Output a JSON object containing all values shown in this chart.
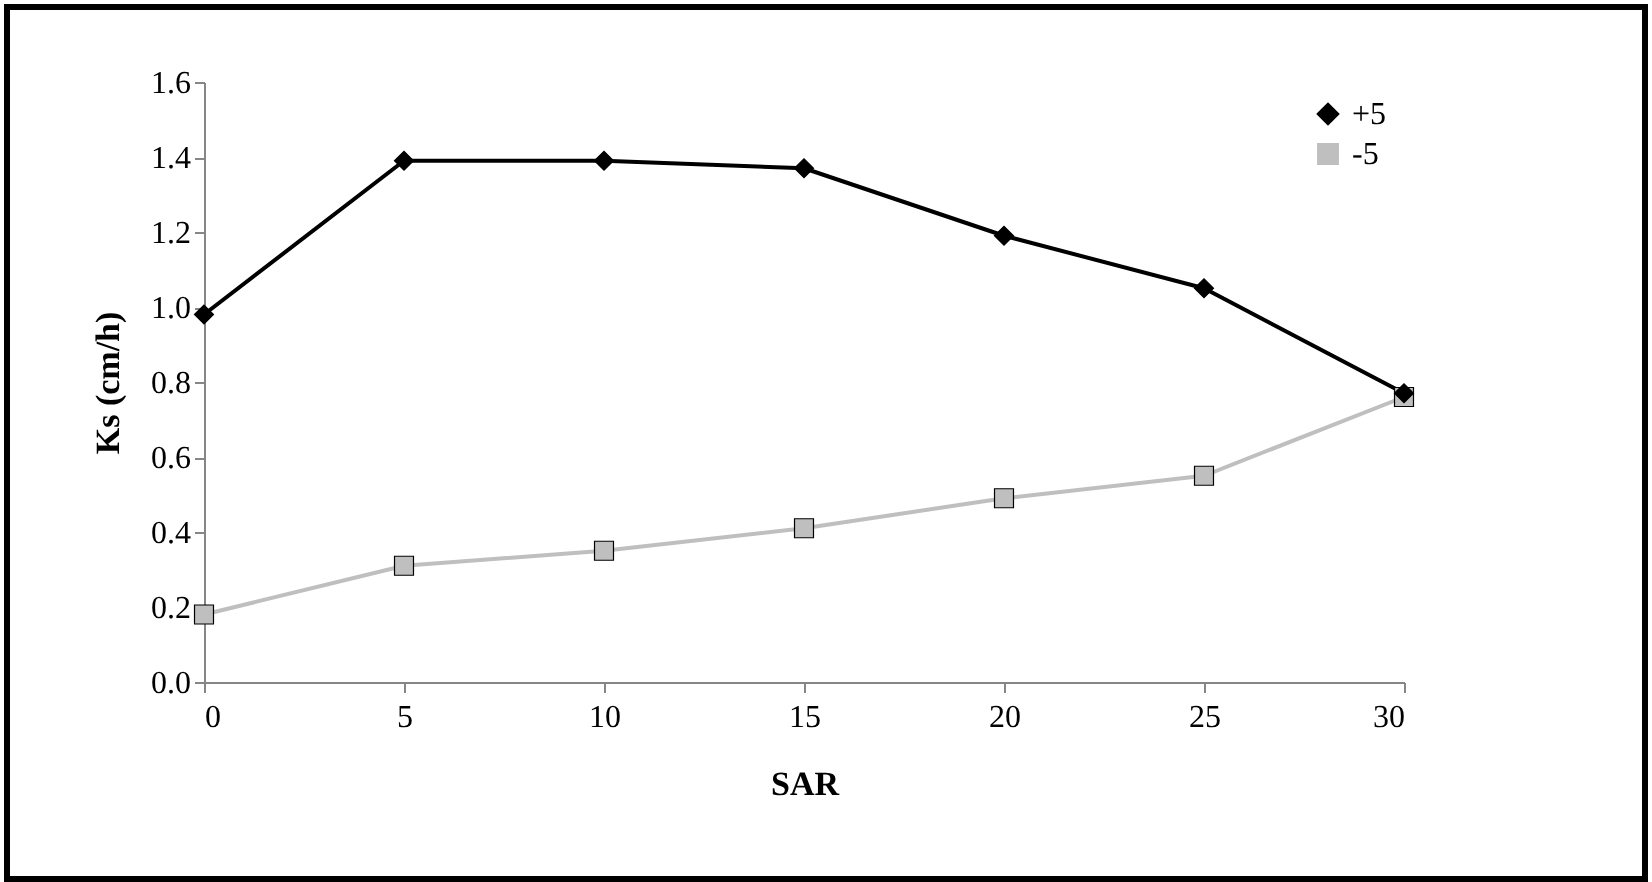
{
  "chart_data": {
    "type": "line",
    "xlabel": "SAR",
    "ylabel": "Ks (cm/h)",
    "x": [
      0,
      5,
      10,
      15,
      20,
      25,
      30
    ],
    "series": [
      {
        "name": "+5",
        "color": "#000000",
        "marker": "diamond",
        "values": [
          0.98,
          1.39,
          1.39,
          1.37,
          1.19,
          1.05,
          0.77
        ]
      },
      {
        "name": "-5",
        "color": "#bfbfbf",
        "marker": "square",
        "values": [
          0.18,
          0.31,
          0.35,
          0.41,
          0.49,
          0.55,
          0.76
        ]
      }
    ],
    "xlim": [
      0,
      30
    ],
    "xticks": [
      0,
      5,
      10,
      15,
      20,
      25,
      30
    ],
    "ylim": [
      0,
      1.6
    ],
    "yticks": [
      {
        "value": 0,
        "label": "0.0"
      },
      0.2,
      0.4,
      0.6,
      0.8,
      {
        "value": 1,
        "label": "1.0"
      },
      1.2,
      1.4,
      1.6
    ],
    "grid": false,
    "legend": "top right"
  }
}
